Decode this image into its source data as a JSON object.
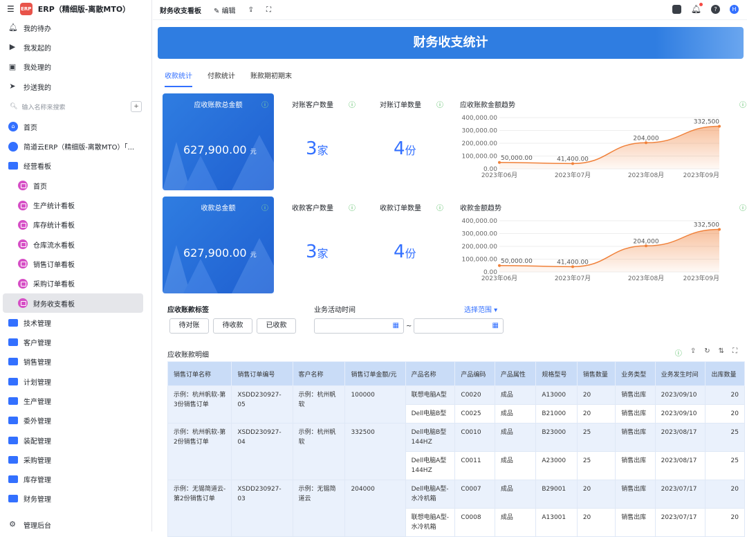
{
  "app": {
    "title": "ERP（精细版-离散MTO）"
  },
  "sidebar": {
    "quick": [
      {
        "label": "我的待办",
        "icon": "bell-icon"
      },
      {
        "label": "我发起的",
        "icon": "play-icon"
      },
      {
        "label": "我处理的",
        "icon": "inbox-icon"
      },
      {
        "label": "抄送我的",
        "icon": "send-icon"
      }
    ],
    "search_placeholder": "输入名称来搜索",
    "items": [
      {
        "label": "首页",
        "type": "home"
      },
      {
        "label": "简道云ERP（精细版-离散MTO）「...",
        "type": "doc"
      },
      {
        "label": "经营看板",
        "type": "folder-open"
      },
      {
        "label": "首页",
        "type": "board",
        "sub": true
      },
      {
        "label": "生产统计看板",
        "type": "board",
        "sub": true
      },
      {
        "label": "库存统计看板",
        "type": "board",
        "sub": true
      },
      {
        "label": "仓库流水看板",
        "type": "board",
        "sub": true
      },
      {
        "label": "销售订单看板",
        "type": "board",
        "sub": true
      },
      {
        "label": "采购订单看板",
        "type": "board",
        "sub": true
      },
      {
        "label": "财务收支看板",
        "type": "board",
        "sub": true,
        "active": true
      },
      {
        "label": "技术管理",
        "type": "folder"
      },
      {
        "label": "客户管理",
        "type": "folder"
      },
      {
        "label": "销售管理",
        "type": "folder"
      },
      {
        "label": "计划管理",
        "type": "folder"
      },
      {
        "label": "生产管理",
        "type": "folder"
      },
      {
        "label": "委外管理",
        "type": "folder"
      },
      {
        "label": "装配管理",
        "type": "folder"
      },
      {
        "label": "采购管理",
        "type": "folder"
      },
      {
        "label": "库存管理",
        "type": "folder"
      },
      {
        "label": "财务管理",
        "type": "folder"
      }
    ],
    "admin": "管理后台"
  },
  "header": {
    "title": "财务收支看板",
    "edit": "编辑",
    "avatar": "H"
  },
  "banner": {
    "title": "财务收支统计"
  },
  "tabs": [
    "收款统计",
    "付款统计",
    "账款期初期末"
  ],
  "row1": {
    "card_title": "应收账款总金额",
    "card_value": "627,900.00",
    "unit": "元",
    "kpi1": {
      "title": "对账客户数量",
      "value": "3",
      "unit": "家"
    },
    "kpi2": {
      "title": "对账订单数量",
      "value": "4",
      "unit": "份"
    },
    "chart_title": "应收账款金额趋势"
  },
  "row2": {
    "card_title": "收款总金额",
    "card_value": "627,900.00",
    "unit": "元",
    "kpi1": {
      "title": "收款客户数量",
      "value": "3",
      "unit": "家"
    },
    "kpi2": {
      "title": "收款订单数量",
      "value": "4",
      "unit": "份"
    },
    "chart_title": "收款金额趋势"
  },
  "chart_data": [
    {
      "type": "area",
      "title": "应收账款金额趋势",
      "categories": [
        "2023年06月",
        "2023年07月",
        "2023年08月",
        "2023年09月"
      ],
      "values": [
        50000,
        41400,
        204000,
        332500
      ],
      "labels": [
        "50,000.00",
        "41,400.00",
        "204,000",
        "332,500"
      ],
      "yticks": [
        "400,000.00",
        "300,000.00",
        "200,000.00",
        "100,000.00",
        "0.00"
      ],
      "ylim": [
        0,
        400000
      ],
      "color": "#f0813a"
    },
    {
      "type": "area",
      "title": "收款金额趋势",
      "categories": [
        "2023年06月",
        "2023年07月",
        "2023年08月",
        "2023年09月"
      ],
      "values": [
        50000,
        41400,
        204000,
        332500
      ],
      "labels": [
        "50,000.00",
        "41,400.00",
        "204,000",
        "332,500"
      ],
      "yticks": [
        "400,000.00",
        "300,000.00",
        "200,000.00",
        "100,000.00",
        "0.00"
      ],
      "ylim": [
        0,
        400000
      ],
      "color": "#f0813a"
    }
  ],
  "filter": {
    "tag_label": "应收账款标签",
    "tags": [
      "待对账",
      "待收款",
      "已收款"
    ],
    "time_label": "业务活动时间",
    "range_label": "选择范围 ▾",
    "sep": "~"
  },
  "detail": {
    "title": "应收账款明细",
    "columns": [
      "销售订单名称",
      "销售订单编号",
      "客户名称",
      "销售订单金额/元",
      "产品名称",
      "产品编码",
      "产品属性",
      "规格型号",
      "销售数量",
      "业务类型",
      "业务发生时间",
      "出库数量"
    ],
    "orders": [
      {
        "name": "示例：杭州帆软-第3份销售订单",
        "code": "XSDD230927-05",
        "customer": "示例：杭州帆软",
        "amount": "100000",
        "items": [
          [
            "联想电脑A型",
            "C0020",
            "成品",
            "A13000",
            "20",
            "销售出库",
            "2023/09/10",
            "20"
          ],
          [
            "Dell电脑B型",
            "C0025",
            "成品",
            "B21000",
            "20",
            "销售出库",
            "2023/09/10",
            "20"
          ]
        ]
      },
      {
        "name": "示例：杭州帆软-第2份销售订单",
        "code": "XSDD230927-04",
        "customer": "示例：杭州帆软",
        "amount": "332500",
        "items": [
          [
            "Dell电脑B型144HZ",
            "C0010",
            "成品",
            "B23000",
            "25",
            "销售出库",
            "2023/08/17",
            "25"
          ],
          [
            "Dell电脑A型144HZ",
            "C0011",
            "成品",
            "A23000",
            "25",
            "销售出库",
            "2023/08/17",
            "25"
          ]
        ]
      },
      {
        "name": "示例：无锡简道云-第2份销售订单",
        "code": "XSDD230927-03",
        "customer": "示例：无锡简道云",
        "amount": "204000",
        "items": [
          [
            "Dell电脑A型-水冷机箱",
            "C0007",
            "成品",
            "B29001",
            "20",
            "销售出库",
            "2023/07/17",
            "20"
          ],
          [
            "联想电脑A型-水冷机箱",
            "C0008",
            "成品",
            "A13001",
            "20",
            "销售出库",
            "2023/07/17",
            "20"
          ]
        ]
      }
    ]
  }
}
